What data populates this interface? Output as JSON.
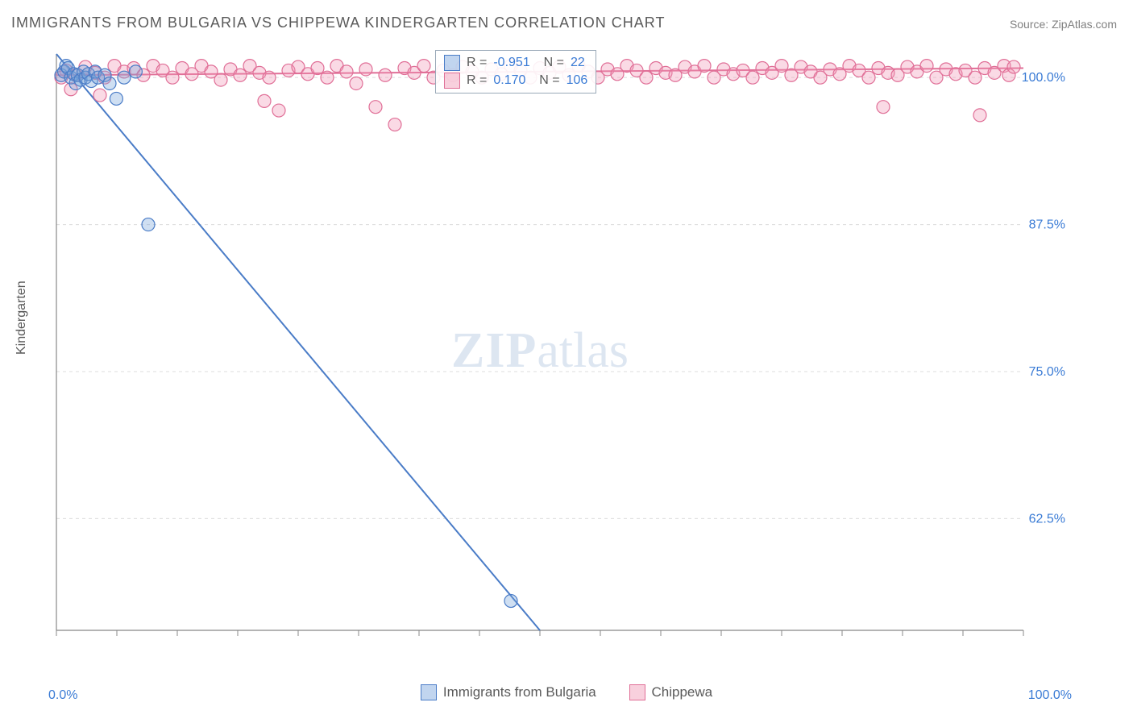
{
  "title": "IMMIGRANTS FROM BULGARIA VS CHIPPEWA KINDERGARTEN CORRELATION CHART",
  "source": "Source: ZipAtlas.com",
  "ylabel": "Kindergarten",
  "watermark_bold": "ZIP",
  "watermark_light": "atlas",
  "chart": {
    "type": "scatter-with-regression",
    "xlim": [
      0,
      100
    ],
    "ylim": [
      53,
      102
    ],
    "x_axis": {
      "min_label": "0.0%",
      "max_label": "100.0%"
    },
    "y_ticks": [
      {
        "v": 62.5,
        "label": "62.5%"
      },
      {
        "v": 75.0,
        "label": "75.0%"
      },
      {
        "v": 87.5,
        "label": "87.5%"
      },
      {
        "v": 100.0,
        "label": "100.0%"
      }
    ],
    "x_tick_positions": [
      0,
      6.25,
      12.5,
      18.75,
      25,
      31.25,
      37.5,
      43.75,
      50,
      56.25,
      62.5,
      68.75,
      75,
      81.25,
      87.5,
      93.75,
      100
    ],
    "background_color": "#ffffff",
    "grid_color": "#dcdcdc",
    "axis_color": "#888888",
    "marker_radius": 8,
    "marker_stroke_width": 1.2,
    "line_width": 2,
    "series": [
      {
        "name": "Immigrants from Bulgaria",
        "color": "#5b8dd6",
        "fill": "rgba(118,162,219,0.35)",
        "stroke": "#4a7cc7",
        "R": "-0.951",
        "N": "22",
        "regression": {
          "x1": 0,
          "y1": 102,
          "x2": 50,
          "y2": 53
        },
        "points": [
          [
            0.5,
            100.2
          ],
          [
            0.8,
            100.5
          ],
          [
            1.0,
            101.0
          ],
          [
            1.2,
            100.8
          ],
          [
            1.5,
            100.0
          ],
          [
            1.8,
            100.3
          ],
          [
            2.0,
            99.5
          ],
          [
            2.2,
            100.2
          ],
          [
            2.5,
            99.8
          ],
          [
            2.8,
            100.5
          ],
          [
            3.0,
            100.0
          ],
          [
            3.3,
            100.3
          ],
          [
            3.6,
            99.7
          ],
          [
            4.0,
            100.5
          ],
          [
            4.3,
            100.0
          ],
          [
            5.0,
            100.2
          ],
          [
            5.5,
            99.5
          ],
          [
            6.2,
            98.2
          ],
          [
            8.2,
            100.5
          ],
          [
            7.0,
            100.0
          ],
          [
            9.5,
            87.5
          ],
          [
            47.0,
            55.5
          ]
        ]
      },
      {
        "name": "Chippewa",
        "color": "#e887a8",
        "fill": "rgba(240,150,180,0.35)",
        "stroke": "#e06f97",
        "R": "0.170",
        "N": "106",
        "regression": {
          "x1": 0,
          "y1": 100.2,
          "x2": 100,
          "y2": 100.8
        },
        "points": [
          [
            1,
            100.6
          ],
          [
            2,
            100.2
          ],
          [
            3,
            100.9
          ],
          [
            4,
            100.4
          ],
          [
            5,
            100.0
          ],
          [
            6,
            101.0
          ],
          [
            7,
            100.5
          ],
          [
            8,
            100.8
          ],
          [
            9,
            100.2
          ],
          [
            10,
            101.0
          ],
          [
            11,
            100.6
          ],
          [
            12,
            100.0
          ],
          [
            13,
            100.8
          ],
          [
            14,
            100.3
          ],
          [
            15,
            101.0
          ],
          [
            16,
            100.5
          ],
          [
            17,
            99.8
          ],
          [
            18,
            100.7
          ],
          [
            19,
            100.2
          ],
          [
            20,
            101.0
          ],
          [
            21,
            100.4
          ],
          [
            22,
            100.0
          ],
          [
            23,
            97.2
          ],
          [
            24,
            100.6
          ],
          [
            25,
            100.9
          ],
          [
            26,
            100.3
          ],
          [
            27,
            100.8
          ],
          [
            28,
            100.0
          ],
          [
            29,
            101.0
          ],
          [
            30,
            100.5
          ],
          [
            31,
            99.5
          ],
          [
            32,
            100.7
          ],
          [
            33,
            97.5
          ],
          [
            34,
            100.2
          ],
          [
            35,
            96.0
          ],
          [
            36,
            100.8
          ],
          [
            37,
            100.4
          ],
          [
            38,
            101.0
          ],
          [
            39,
            100.0
          ],
          [
            40,
            100.6
          ],
          [
            41,
            100.2
          ],
          [
            42,
            100.9
          ],
          [
            43,
            100.5
          ],
          [
            44,
            100.0
          ],
          [
            45,
            100.7
          ],
          [
            46,
            100.3
          ],
          [
            47,
            101.0
          ],
          [
            48,
            100.6
          ],
          [
            49,
            100.0
          ],
          [
            50,
            100.8
          ],
          [
            51,
            100.4
          ],
          [
            52,
            100.9
          ],
          [
            53,
            100.2
          ],
          [
            54,
            101.0
          ],
          [
            55,
            100.5
          ],
          [
            56,
            100.0
          ],
          [
            57,
            100.7
          ],
          [
            58,
            100.3
          ],
          [
            59,
            101.0
          ],
          [
            60,
            100.6
          ],
          [
            61,
            100.0
          ],
          [
            62,
            100.8
          ],
          [
            63,
            100.4
          ],
          [
            64,
            100.2
          ],
          [
            65,
            100.9
          ],
          [
            66,
            100.5
          ],
          [
            67,
            101.0
          ],
          [
            68,
            100.0
          ],
          [
            69,
            100.7
          ],
          [
            70,
            100.3
          ],
          [
            71,
            100.6
          ],
          [
            72,
            100.0
          ],
          [
            73,
            100.8
          ],
          [
            74,
            100.4
          ],
          [
            75,
            101.0
          ],
          [
            76,
            100.2
          ],
          [
            77,
            100.9
          ],
          [
            78,
            100.5
          ],
          [
            79,
            100.0
          ],
          [
            80,
            100.7
          ],
          [
            81,
            100.3
          ],
          [
            82,
            101.0
          ],
          [
            83,
            100.6
          ],
          [
            84,
            100.0
          ],
          [
            85,
            100.8
          ],
          [
            86,
            100.4
          ],
          [
            87,
            100.2
          ],
          [
            88,
            100.9
          ],
          [
            89,
            100.5
          ],
          [
            90,
            101.0
          ],
          [
            91,
            100.0
          ],
          [
            92,
            100.7
          ],
          [
            93,
            100.3
          ],
          [
            94,
            100.6
          ],
          [
            95,
            100.0
          ],
          [
            96,
            100.8
          ],
          [
            97,
            100.4
          ],
          [
            98,
            101.0
          ],
          [
            98.5,
            100.2
          ],
          [
            99,
            100.9
          ],
          [
            95.5,
            96.8
          ],
          [
            85.5,
            97.5
          ],
          [
            21.5,
            98.0
          ],
          [
            4.5,
            98.5
          ],
          [
            1.5,
            99.0
          ],
          [
            0.5,
            100.0
          ]
        ]
      }
    ]
  },
  "legend_bottom": [
    {
      "label": "Immigrants from Bulgaria",
      "fill": "rgba(118,162,219,0.45)",
      "stroke": "#4a7cc7"
    },
    {
      "label": "Chippewa",
      "fill": "rgba(240,150,180,0.45)",
      "stroke": "#e06f97"
    }
  ]
}
